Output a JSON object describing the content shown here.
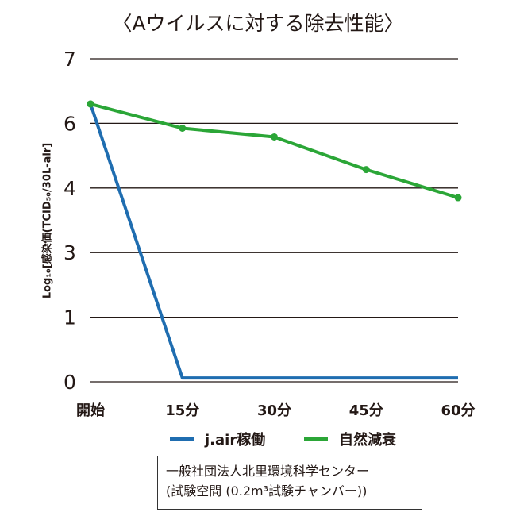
{
  "chart_data": {
    "type": "line",
    "title": "〈Aウイルスに対する除去性能〉",
    "ylabel": "Log₁₀[感染価(TCID₅₀/30L-air]",
    "xlabel": "",
    "categories": [
      "開始",
      "15分",
      "30分",
      "45分",
      "60分"
    ],
    "y_ticks": [
      7,
      6,
      4,
      3,
      1,
      0
    ],
    "grid": true,
    "legend_position": "bottom",
    "series": [
      {
        "name": "j.air稼働",
        "color": "#1f6db0",
        "values": [
          6.3,
          0.06,
          0.06,
          0.06,
          0.06
        ]
      },
      {
        "name": "自然減衰",
        "color": "#2ba637",
        "values": [
          6.3,
          5.85,
          5.58,
          4.57,
          3.85
        ]
      }
    ]
  },
  "note": {
    "line1": "一般社団法人北里環境科学センター",
    "line2": "(試験空間 (0.2m³試験チャンバー))"
  }
}
